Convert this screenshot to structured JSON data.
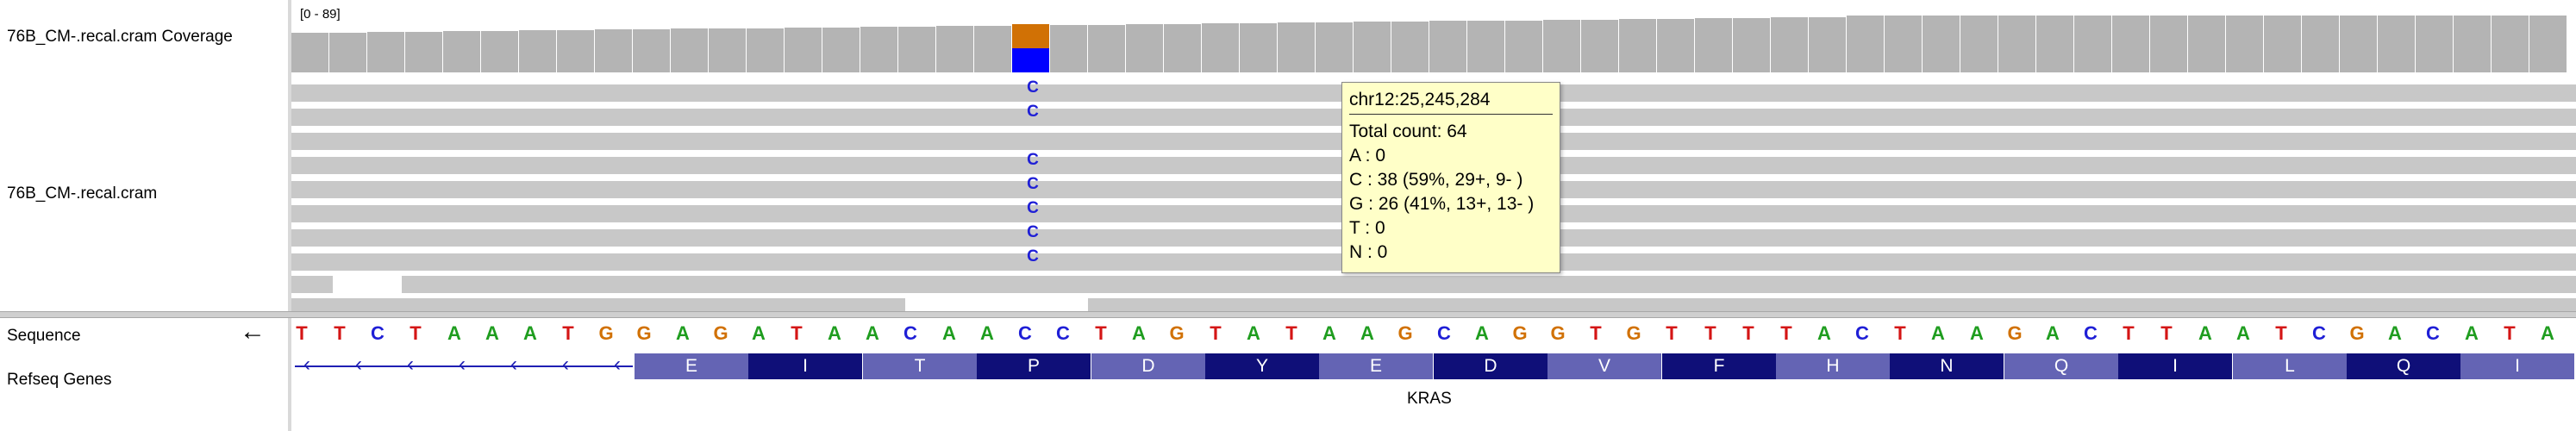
{
  "tracks": {
    "coverage_label": "76B_CM-.recal.cram Coverage",
    "reads_label": "76B_CM-.recal.cram",
    "sequence_label": "Sequence",
    "genes_label": "Refseq Genes"
  },
  "coverage": {
    "range_label": "[0 - 89]",
    "max": 89,
    "bar_color": "#b4b4b4",
    "mismatch_c_color": "#0000ff",
    "mismatch_g_color": "#d17105"
  },
  "mismatch": {
    "base": "C",
    "color": "#1f1fd6"
  },
  "tooltip": {
    "position": "chr12:25,245,284",
    "total": "Total count: 64",
    "a": "A : 0",
    "c": "C : 38 (59%, 29+, 9- )",
    "g": "G : 26 (41%, 13+, 13- )",
    "t": "T : 0",
    "n": "N : 0"
  },
  "sequence": {
    "bases": [
      "T",
      "T",
      "C",
      "T",
      "A",
      "A",
      "A",
      "T",
      "G",
      "G",
      "A",
      "G",
      "A",
      "T",
      "A",
      "A",
      "C",
      "A",
      "A",
      "C",
      "C",
      "T",
      "A",
      "G",
      "T",
      "A",
      "T",
      "A",
      "A",
      "G",
      "C",
      "A",
      "G",
      "G",
      "T",
      "G",
      "T",
      "T",
      "T",
      "T",
      "A",
      "C",
      "T",
      "A",
      "A",
      "G",
      "A",
      "C",
      "T",
      "T",
      "A",
      "A",
      "T",
      "C",
      "G",
      "A",
      "C",
      "A",
      "T",
      "A"
    ],
    "colors": {
      "A": "#1f9d1f",
      "C": "#1f1fd6",
      "G": "#d17105",
      "T": "#d41515"
    },
    "strand": "reverse"
  },
  "gene": {
    "name": "KRAS",
    "amino_acids": [
      "E",
      "I",
      "T",
      "P",
      "D",
      "Y",
      "E",
      "D",
      "V",
      "F",
      "H",
      "N",
      "Q",
      "I",
      "L",
      "Q",
      "I"
    ],
    "exon_colors": [
      "#6464b4",
      "#0f0f78"
    ],
    "intron_color": "#1f1fb4"
  }
}
